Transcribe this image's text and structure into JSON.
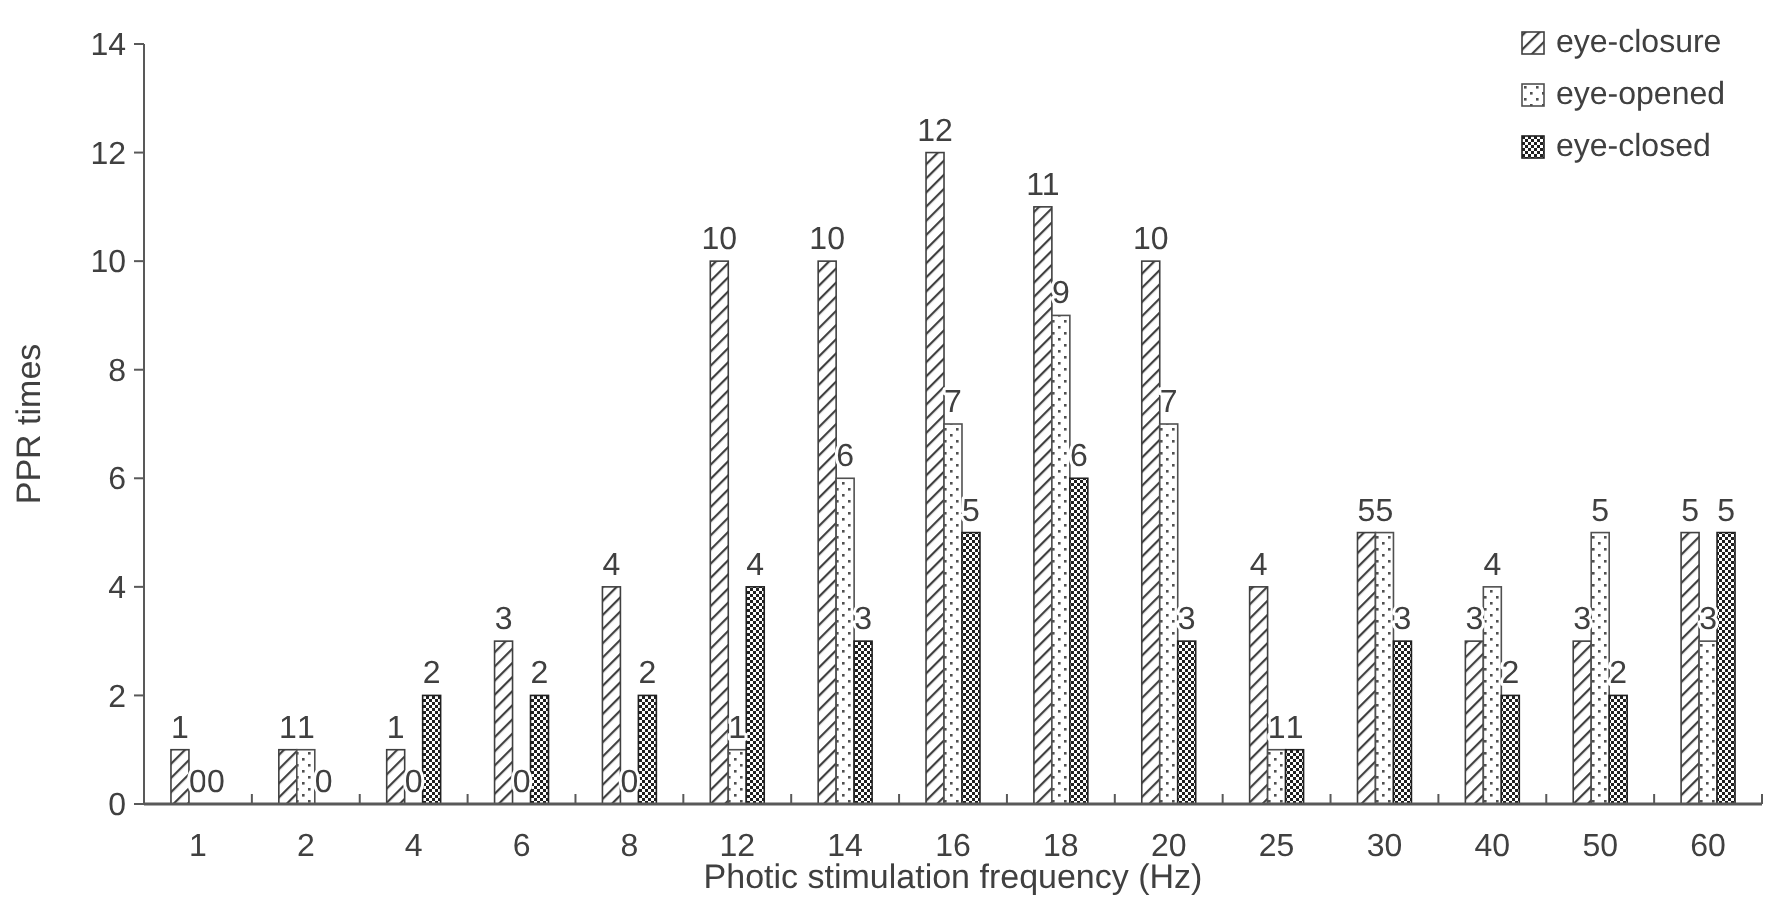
{
  "chart_data": {
    "type": "bar",
    "xlabel": "Photic stimulation frequency (Hz)",
    "ylabel": "PPR times",
    "categories": [
      "1",
      "2",
      "4",
      "6",
      "8",
      "12",
      "14",
      "16",
      "18",
      "20",
      "25",
      "30",
      "40",
      "50",
      "60"
    ],
    "series": [
      {
        "name": "eye-closure",
        "color": "#404040",
        "values": [
          1,
          1,
          1,
          3,
          4,
          10,
          10,
          12,
          11,
          10,
          4,
          5,
          3,
          3,
          5
        ]
      },
      {
        "name": "eye-opened",
        "color": "#505050",
        "values": [
          0,
          1,
          0,
          0,
          0,
          1,
          6,
          7,
          9,
          7,
          1,
          5,
          4,
          5,
          3
        ]
      },
      {
        "name": "eye-closed",
        "color": "#202020",
        "values": [
          0,
          0,
          2,
          2,
          2,
          4,
          3,
          5,
          6,
          3,
          1,
          3,
          2,
          2,
          5
        ]
      }
    ],
    "ylim": [
      0,
      14
    ],
    "yticks": [
      0,
      2,
      4,
      6,
      8,
      10,
      12,
      14
    ],
    "grid": false,
    "legend": "top right",
    "data_labels": true
  }
}
